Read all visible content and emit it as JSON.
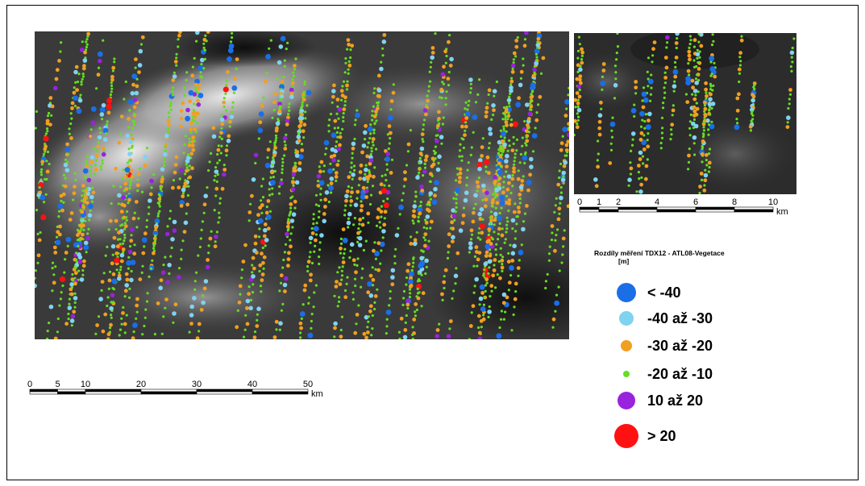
{
  "main_scale": {
    "ticks": [
      "0",
      "5",
      "10",
      "20",
      "30",
      "40",
      "50"
    ],
    "unit": "km"
  },
  "inset_scale": {
    "ticks": [
      "0",
      "1",
      "2",
      "4",
      "6",
      "8",
      "10"
    ],
    "unit": "km"
  },
  "legend": {
    "title": "Rozdíly měření TDX12 - ATL08-Vegetace",
    "unit": "[m]",
    "items": [
      {
        "label": "< -40",
        "color": "#1a6fe8"
      },
      {
        "label": "-40 až -30",
        "color": "#7fd3f0"
      },
      {
        "label": "-30 až -20",
        "color": "#f0a020"
      },
      {
        "label": "-20 až -10",
        "color": "#66dd22"
      },
      {
        "label": "10 až 20",
        "color": "#9922dd"
      },
      {
        "label": "> 20",
        "color": "#ff1111"
      }
    ]
  },
  "colors": {
    "frame": "#000000",
    "dem_dark": "#1e1e1e",
    "dem_light": "#f2f2f2"
  }
}
